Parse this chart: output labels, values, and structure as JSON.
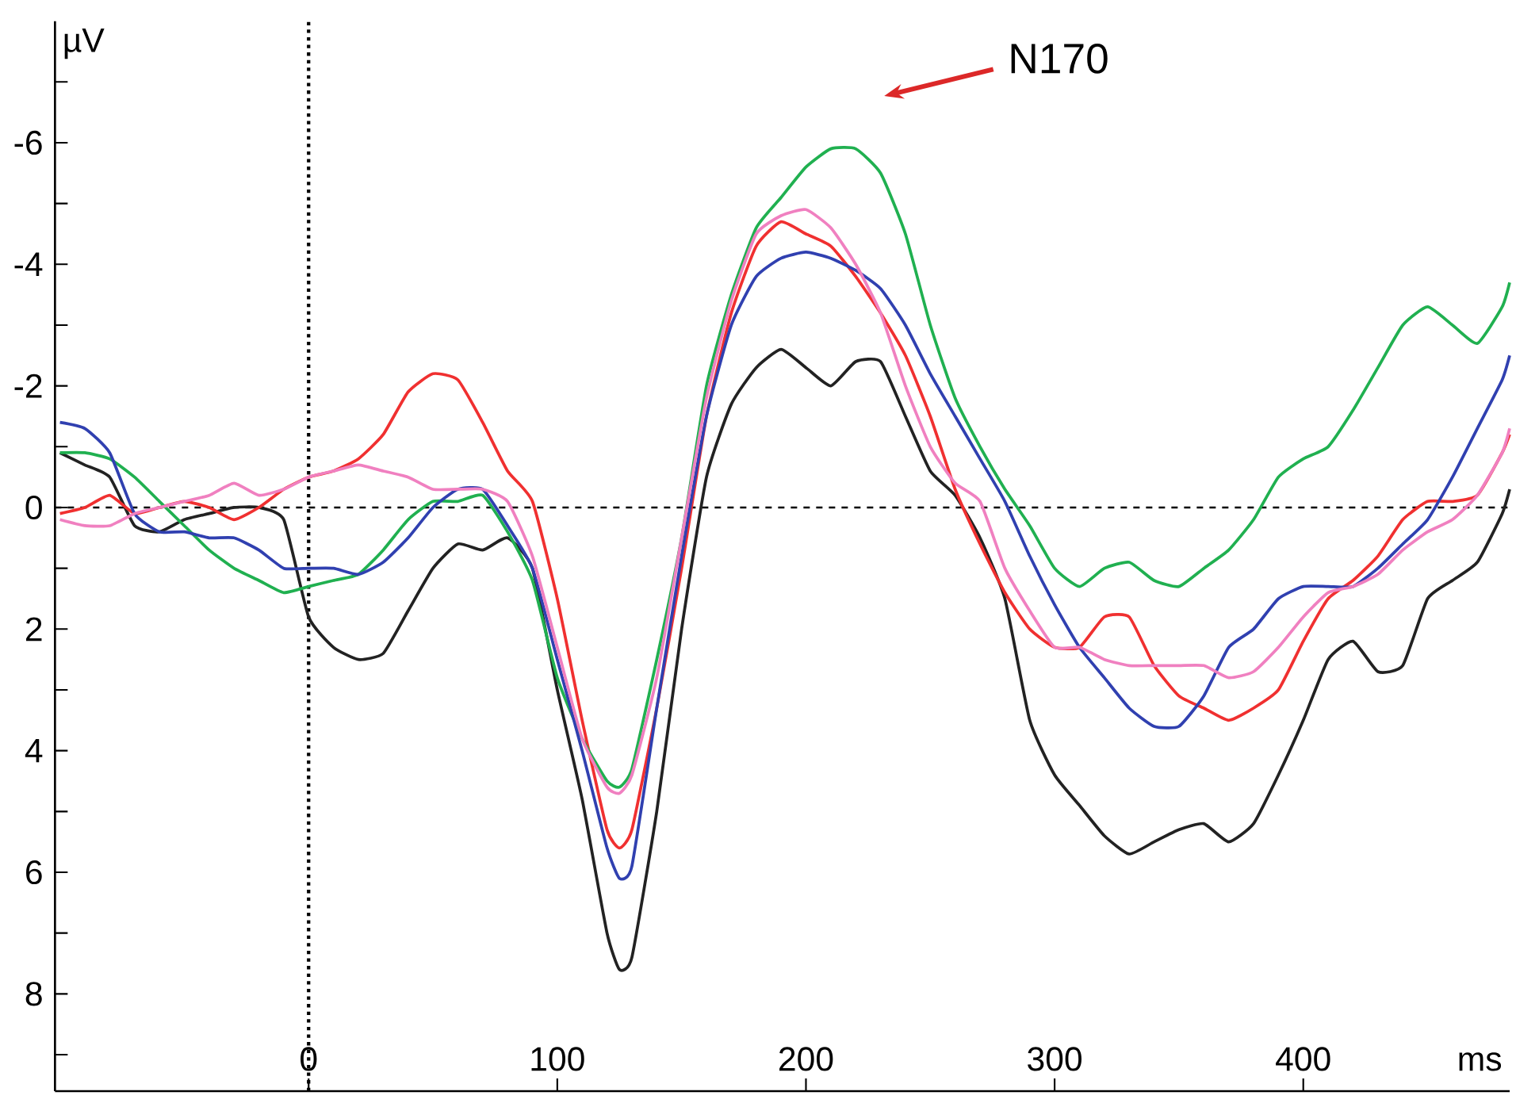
{
  "chart_data": {
    "type": "line",
    "xlabel": "ms",
    "ylabel": "µV",
    "x": [
      -100,
      -90,
      -80,
      -70,
      -60,
      -50,
      -40,
      -30,
      -20,
      -10,
      0,
      10,
      20,
      30,
      40,
      50,
      60,
      70,
      80,
      90,
      100,
      110,
      120,
      125,
      130,
      140,
      150,
      160,
      170,
      180,
      190,
      200,
      210,
      220,
      230,
      240,
      250,
      260,
      270,
      280,
      290,
      300,
      310,
      320,
      330,
      340,
      350,
      360,
      370,
      380,
      390,
      400,
      410,
      420,
      430,
      440,
      450,
      460,
      470,
      480,
      483
    ],
    "series": [
      {
        "color": "#222222",
        "values": [
          -0.9,
          -0.7,
          -0.5,
          0.3,
          0.4,
          0.2,
          0.1,
          0.0,
          0.0,
          0.2,
          1.8,
          2.3,
          2.5,
          2.4,
          1.7,
          1.0,
          0.6,
          0.7,
          0.5,
          1.0,
          3.0,
          4.8,
          7.0,
          7.6,
          7.4,
          5.0,
          2.0,
          -0.5,
          -1.7,
          -2.3,
          -2.6,
          -2.3,
          -2.0,
          -2.4,
          -2.4,
          -1.5,
          -0.6,
          -0.2,
          0.5,
          1.5,
          3.5,
          4.4,
          4.9,
          5.4,
          5.7,
          5.5,
          5.3,
          5.2,
          5.5,
          5.2,
          4.4,
          3.5,
          2.5,
          2.2,
          2.7,
          2.6,
          1.5,
          1.2,
          0.9,
          0.1,
          -0.3
        ]
      },
      {
        "color": "#f03030",
        "values": [
          0.1,
          0.0,
          -0.2,
          0.1,
          0.0,
          -0.1,
          0.0,
          0.2,
          0.0,
          -0.3,
          -0.5,
          -0.6,
          -0.8,
          -1.2,
          -1.9,
          -2.2,
          -2.1,
          -1.4,
          -0.6,
          -0.1,
          1.5,
          3.5,
          5.3,
          5.6,
          5.3,
          3.3,
          1.0,
          -1.5,
          -3.2,
          -4.3,
          -4.7,
          -4.5,
          -4.3,
          -3.8,
          -3.2,
          -2.5,
          -1.5,
          -0.3,
          0.6,
          1.4,
          2.0,
          2.3,
          2.3,
          1.8,
          1.8,
          2.6,
          3.1,
          3.3,
          3.5,
          3.3,
          3.0,
          2.2,
          1.5,
          1.2,
          0.8,
          0.2,
          -0.1,
          -0.1,
          -0.2,
          -0.9,
          -1.2
        ]
      },
      {
        "color": "#20b050",
        "values": [
          -0.9,
          -0.9,
          -0.8,
          -0.5,
          -0.1,
          0.3,
          0.7,
          1.0,
          1.2,
          1.4,
          1.3,
          1.2,
          1.1,
          0.7,
          0.2,
          -0.1,
          -0.1,
          -0.2,
          0.4,
          1.2,
          2.8,
          3.8,
          4.5,
          4.6,
          4.3,
          2.5,
          0.5,
          -2.0,
          -3.5,
          -4.6,
          -5.1,
          -5.6,
          -5.9,
          -5.9,
          -5.5,
          -4.5,
          -3.0,
          -1.8,
          -1.0,
          -0.3,
          0.3,
          1.0,
          1.3,
          1.0,
          0.9,
          1.2,
          1.3,
          1.0,
          0.7,
          0.2,
          -0.5,
          -0.8,
          -1.0,
          -1.6,
          -2.3,
          -3.0,
          -3.3,
          -3.0,
          -2.7,
          -3.3,
          -3.7
        ]
      },
      {
        "color": "#3040b0",
        "values": [
          -1.4,
          -1.3,
          -0.9,
          0.1,
          0.4,
          0.4,
          0.5,
          0.5,
          0.7,
          1.0,
          1.0,
          1.0,
          1.1,
          0.9,
          0.5,
          0.0,
          -0.3,
          -0.3,
          0.3,
          1.0,
          2.5,
          4.0,
          5.6,
          6.1,
          5.9,
          3.3,
          0.8,
          -1.5,
          -3.0,
          -3.8,
          -4.1,
          -4.2,
          -4.1,
          -3.9,
          -3.6,
          -3.0,
          -2.2,
          -1.5,
          -0.8,
          -0.1,
          0.8,
          1.6,
          2.3,
          2.8,
          3.3,
          3.6,
          3.6,
          3.1,
          2.3,
          2.0,
          1.5,
          1.3,
          1.3,
          1.3,
          1.0,
          0.6,
          0.2,
          -0.5,
          -1.3,
          -2.1,
          -2.5
        ]
      },
      {
        "color": "#f080c0",
        "values": [
          0.2,
          0.3,
          0.3,
          0.1,
          0.0,
          -0.1,
          -0.2,
          -0.4,
          -0.2,
          -0.3,
          -0.5,
          -0.6,
          -0.7,
          -0.6,
          -0.5,
          -0.3,
          -0.3,
          -0.3,
          -0.1,
          0.8,
          2.3,
          3.8,
          4.6,
          4.7,
          4.4,
          2.8,
          0.5,
          -1.8,
          -3.4,
          -4.5,
          -4.8,
          -4.9,
          -4.6,
          -4.0,
          -3.2,
          -2.0,
          -1.0,
          -0.4,
          -0.1,
          1.0,
          1.7,
          2.3,
          2.3,
          2.5,
          2.6,
          2.6,
          2.6,
          2.6,
          2.8,
          2.7,
          2.3,
          1.8,
          1.4,
          1.3,
          1.1,
          0.7,
          0.4,
          0.2,
          -0.2,
          -0.9,
          -1.3
        ]
      }
    ],
    "xlim": [
      -102,
      483
    ],
    "ylim": [
      9.6,
      -8
    ],
    "xticks": [
      0,
      100,
      200,
      300,
      400
    ],
    "yticks": [
      -6,
      -4,
      -2,
      0,
      2,
      4,
      6,
      8,
      {
        "value": -7,
        "label": null
      },
      {
        "value": -5,
        "label": null
      },
      {
        "value": -3,
        "label": null
      },
      {
        "value": -1,
        "label": null
      },
      {
        "value": 1,
        "label": null
      },
      {
        "value": 3,
        "label": null
      },
      {
        "value": 5,
        "label": null
      },
      {
        "value": 7,
        "label": null
      },
      {
        "value": 9,
        "label": null
      }
    ],
    "ref_lines": [
      {
        "axis": "x",
        "value": 0,
        "line_style": "dotted",
        "color": "#000000"
      },
      {
        "axis": "y",
        "value": 0,
        "line_style": "dashed",
        "color": "#000000"
      }
    ],
    "annotations": [
      "N170"
    ],
    "grid": false,
    "marker": "none",
    "line_style": "solid"
  }
}
